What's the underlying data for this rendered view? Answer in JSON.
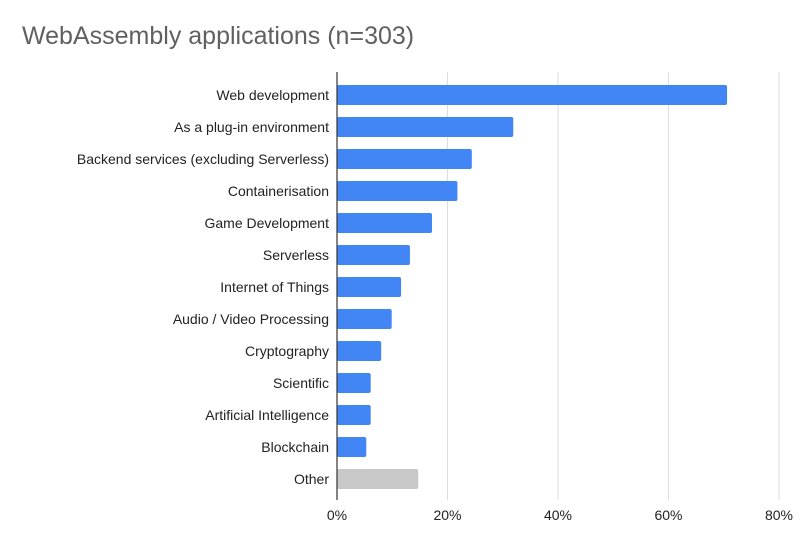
{
  "chart_data": {
    "type": "bar",
    "orientation": "horizontal",
    "title": "WebAssembly applications (n=303)",
    "xlabel": "",
    "ylabel": "",
    "categories": [
      "Web development",
      "As a plug-in environment",
      "Backend services (excluding Serverless)",
      "Containerisation",
      "Game Development",
      "Serverless",
      "Internet of Things",
      "Audio / Video Processing",
      "Cryptography",
      "Scientific",
      "Artificial Intelligence",
      "Blockchain",
      "Other"
    ],
    "values": [
      70.6,
      31.9,
      24.4,
      21.8,
      17.2,
      13.2,
      11.6,
      9.9,
      8.0,
      6.1,
      6.1,
      5.3,
      14.7
    ],
    "bar_colors": [
      "#4285f4",
      "#4285f4",
      "#4285f4",
      "#4285f4",
      "#4285f4",
      "#4285f4",
      "#4285f4",
      "#4285f4",
      "#4285f4",
      "#4285f4",
      "#4285f4",
      "#4285f4",
      "#c8c8c8"
    ],
    "xlim": [
      0,
      80
    ],
    "xticks": [
      "0%",
      "20%",
      "40%",
      "60%",
      "80%"
    ],
    "grid": true,
    "legend": "none"
  }
}
